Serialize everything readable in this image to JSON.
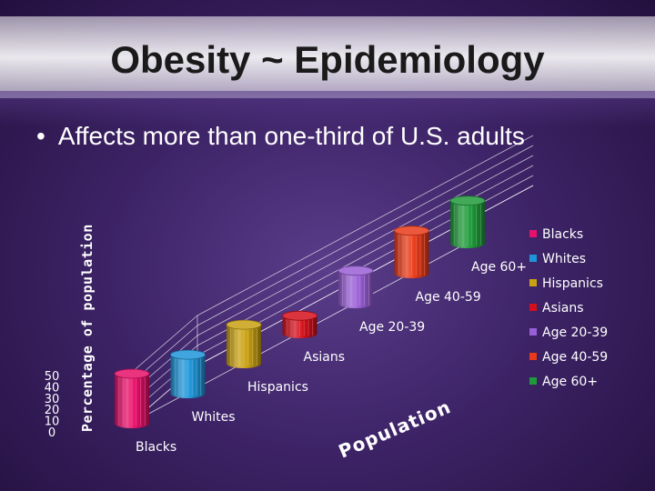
{
  "slide": {
    "title": "Obesity ~ Epidemiology",
    "bullet": "Affects more than one-third of U.S. adults"
  },
  "chart_data": {
    "type": "bar",
    "style": "3d-cylinder",
    "ylabel": "Percentage of population",
    "zlabel": "Population",
    "ylim": [
      0,
      50
    ],
    "yticks": [
      "50",
      "40",
      "30",
      "20",
      "10",
      "0"
    ],
    "categories": [
      "Blacks",
      "Whites",
      "Hispanics",
      "Asians",
      "Age 20-39",
      "Age 40-59",
      "Age 60+"
    ],
    "values": [
      50,
      39,
      39,
      18,
      33,
      43,
      43
    ],
    "colors": [
      "#e8106a",
      "#1e95d8",
      "#c9a113",
      "#d4101c",
      "#9a5fd6",
      "#e83a18",
      "#1f9a3a"
    ],
    "legend": {
      "position": "right",
      "entries": [
        "Blacks",
        "Whites",
        "Hispanics",
        "Asians",
        "Age 20-39",
        "Age 40-59",
        "Age 60+"
      ]
    },
    "grid": true
  }
}
